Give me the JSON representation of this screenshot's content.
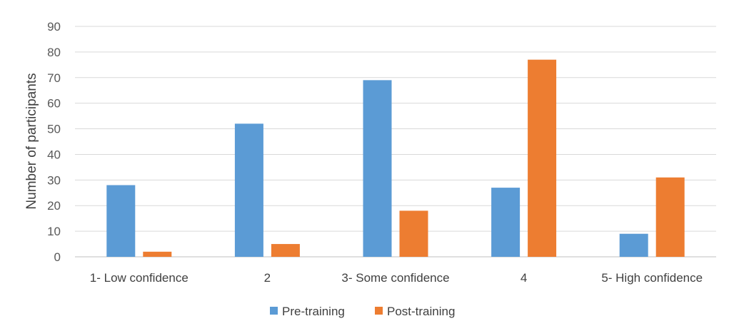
{
  "chart_data": {
    "type": "bar",
    "title": "",
    "xlabel": "",
    "ylabel": "Number of participants",
    "ylim": [
      0,
      90
    ],
    "yticks": [
      0,
      10,
      20,
      30,
      40,
      50,
      60,
      70,
      80,
      90
    ],
    "grid": true,
    "legend_position": "bottom",
    "categories": [
      "1- Low confidence",
      "2",
      "3- Some confidence",
      "4",
      "5- High confidence"
    ],
    "series": [
      {
        "name": "Pre-training",
        "color": "#5B9BD5",
        "values": [
          28,
          52,
          69,
          27,
          9
        ]
      },
      {
        "name": "Post-training",
        "color": "#ED7D31",
        "values": [
          2,
          5,
          18,
          77,
          31
        ]
      }
    ]
  }
}
